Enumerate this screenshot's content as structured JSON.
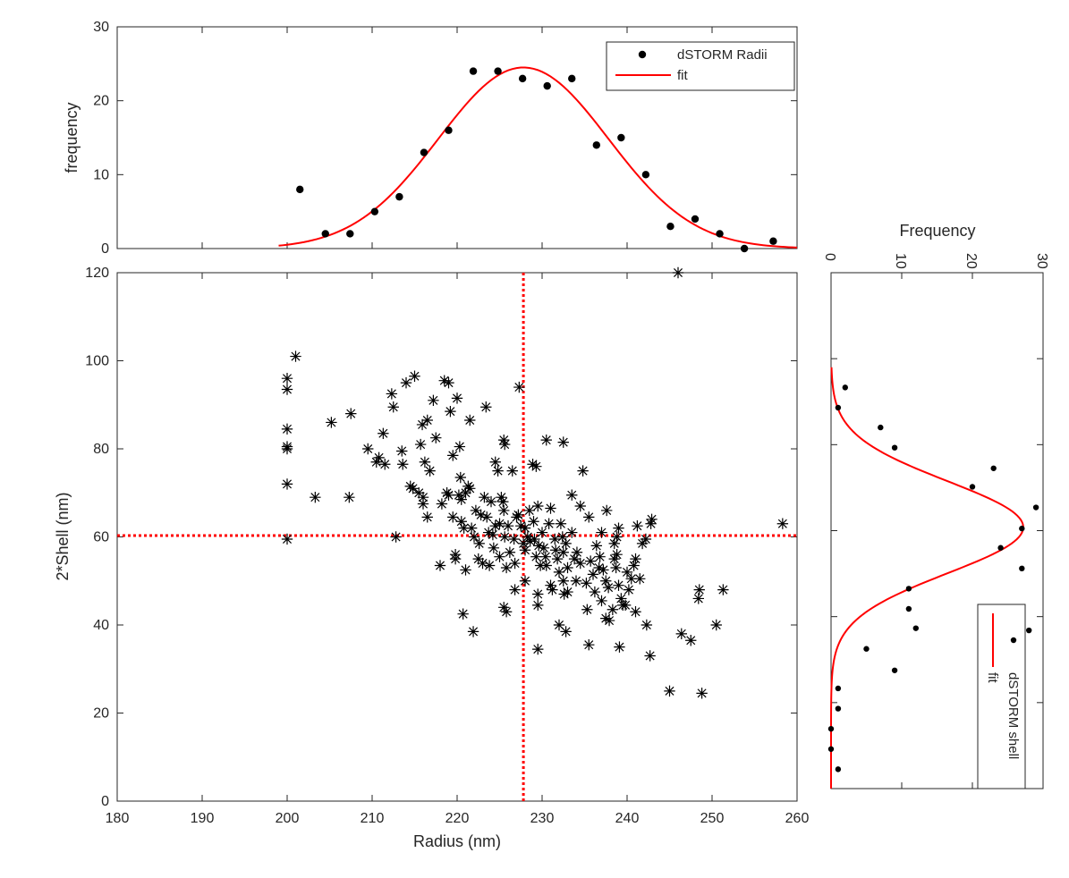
{
  "chart_data": [
    {
      "id": "top-histogram",
      "type": "scatter",
      "ylabel": "frequency",
      "xlim": [
        180,
        260
      ],
      "ylim": [
        0,
        30
      ],
      "xticks": [
        180,
        190,
        200,
        210,
        220,
        230,
        240,
        250,
        260
      ],
      "yticks": [
        0,
        10,
        20,
        30
      ],
      "legend_position": "top-right",
      "series": [
        {
          "name": "dSTORM Radii",
          "kind": "points",
          "color": "#000000",
          "x": [
            201.5,
            204.5,
            207.4,
            210.3,
            213.2,
            216.1,
            219.0,
            221.9,
            224.8,
            227.7,
            230.6,
            233.5,
            236.4,
            239.3,
            242.2,
            245.1,
            248.0,
            250.9,
            253.8,
            257.2
          ],
          "y": [
            8,
            2,
            2,
            5,
            7,
            13,
            16,
            24,
            24,
            23,
            22,
            23,
            14,
            15,
            10,
            3,
            4,
            2,
            0,
            1
          ]
        },
        {
          "name": "fit",
          "kind": "gaussian",
          "color": "#ff0000",
          "amplitude": 24.5,
          "mean": 227.8,
          "sigma": 10.0,
          "x_range": [
            199,
            260
          ]
        }
      ]
    },
    {
      "id": "main-scatter",
      "type": "scatter",
      "xlabel": "Radius (nm)",
      "ylabel": "2*Shell (nm)",
      "xlim": [
        180,
        260
      ],
      "ylim": [
        0,
        120
      ],
      "xticks": [
        180,
        190,
        200,
        210,
        220,
        230,
        240,
        250,
        260
      ],
      "yticks": [
        0,
        20,
        40,
        60,
        80,
        100,
        120
      ],
      "mean_lines": {
        "x": 227.8,
        "y": 60.3,
        "color": "#ff0000",
        "style": "dotted"
      },
      "point_color": "#000000",
      "points": [
        [
          200,
          96
        ],
        [
          200,
          93.5
        ],
        [
          200,
          84.5
        ],
        [
          200,
          80.5
        ],
        [
          200,
          80
        ],
        [
          200,
          72
        ],
        [
          200,
          59.5
        ],
        [
          201,
          101
        ],
        [
          203.3,
          69
        ],
        [
          205.2,
          86
        ],
        [
          207.3,
          69
        ],
        [
          207.5,
          88
        ],
        [
          209.5,
          80
        ],
        [
          210.5,
          77
        ],
        [
          210.8,
          78
        ],
        [
          211.3,
          83.5
        ],
        [
          211.5,
          76.5
        ],
        [
          212.3,
          92.5
        ],
        [
          212.5,
          89.5
        ],
        [
          212.8,
          60
        ],
        [
          213.5,
          79.5
        ],
        [
          213.6,
          76.5
        ],
        [
          214,
          95
        ],
        [
          214.5,
          71.5
        ],
        [
          214.8,
          71
        ],
        [
          215,
          96.5
        ],
        [
          215.5,
          70
        ],
        [
          215.7,
          81
        ],
        [
          215.9,
          85.5
        ],
        [
          216,
          69
        ],
        [
          216,
          67.5
        ],
        [
          216.2,
          77
        ],
        [
          216.5,
          86.5
        ],
        [
          216.5,
          64.5
        ],
        [
          216.8,
          75
        ],
        [
          217.2,
          91
        ],
        [
          217.5,
          82.5
        ],
        [
          218,
          53.5
        ],
        [
          218.2,
          67.5
        ],
        [
          218.5,
          95.5
        ],
        [
          218.8,
          70
        ],
        [
          219,
          69.5
        ],
        [
          219.2,
          88.5
        ],
        [
          219,
          95
        ],
        [
          219.5,
          78.5
        ],
        [
          219.5,
          64.5
        ],
        [
          219.8,
          56
        ],
        [
          219.8,
          55
        ],
        [
          220,
          91.5
        ],
        [
          220.2,
          69.5
        ],
        [
          220.3,
          80.5
        ],
        [
          220.4,
          73.5
        ],
        [
          220.5,
          68.5
        ],
        [
          220.5,
          63.5
        ],
        [
          220.7,
          42.5
        ],
        [
          220.8,
          62
        ],
        [
          221,
          52.5
        ],
        [
          221,
          70
        ],
        [
          221.3,
          71.5
        ],
        [
          221.5,
          86.5
        ],
        [
          221.5,
          71
        ],
        [
          221.7,
          62
        ],
        [
          221.9,
          38.5
        ],
        [
          222,
          60
        ],
        [
          222.2,
          66
        ],
        [
          222.5,
          55
        ],
        [
          222.6,
          58.5
        ],
        [
          222.8,
          65
        ],
        [
          223,
          54
        ],
        [
          223.2,
          69
        ],
        [
          223.4,
          89.5
        ],
        [
          223.5,
          64.5
        ],
        [
          223.7,
          61
        ],
        [
          223.8,
          53.5
        ],
        [
          224,
          68
        ],
        [
          224.2,
          60.5
        ],
        [
          224.3,
          57.5
        ],
        [
          224.5,
          77
        ],
        [
          224.5,
          62.5
        ],
        [
          224.8,
          75
        ],
        [
          225,
          63
        ],
        [
          225,
          55.5
        ],
        [
          225.2,
          69
        ],
        [
          225.4,
          68
        ],
        [
          225.5,
          82
        ],
        [
          225.6,
          81
        ],
        [
          225.5,
          66
        ],
        [
          225.6,
          60
        ],
        [
          225.8,
          53
        ],
        [
          225.5,
          44
        ],
        [
          225.8,
          43
        ],
        [
          226,
          62.5
        ],
        [
          226.2,
          56.5
        ],
        [
          226.5,
          75
        ],
        [
          226.7,
          59.5
        ],
        [
          226.8,
          54
        ],
        [
          226.8,
          48
        ],
        [
          227,
          64.5
        ],
        [
          227.2,
          65
        ],
        [
          227.3,
          94
        ],
        [
          227.5,
          62.5
        ],
        [
          227.8,
          58.5
        ],
        [
          228,
          62
        ],
        [
          228,
          57
        ],
        [
          228,
          50
        ],
        [
          228.3,
          60
        ],
        [
          228.5,
          66
        ],
        [
          228.6,
          59
        ],
        [
          228.9,
          76.5
        ],
        [
          229,
          63.5
        ],
        [
          229.1,
          59.5
        ],
        [
          229.3,
          76
        ],
        [
          229.3,
          55.5
        ],
        [
          229.5,
          67
        ],
        [
          229.6,
          58
        ],
        [
          229.8,
          53.5
        ],
        [
          229.5,
          44.5
        ],
        [
          229.5,
          34.5
        ],
        [
          229.5,
          47
        ],
        [
          230,
          61
        ],
        [
          230.2,
          57.5
        ],
        [
          230.4,
          55.5
        ],
        [
          230.5,
          82
        ],
        [
          230.5,
          53.5
        ],
        [
          230.8,
          63
        ],
        [
          231,
          66.5
        ],
        [
          231,
          49
        ],
        [
          231.2,
          48
        ],
        [
          231.5,
          59.5
        ],
        [
          231.6,
          57
        ],
        [
          231.8,
          55
        ],
        [
          232,
          52
        ],
        [
          232,
          40
        ],
        [
          232.2,
          63
        ],
        [
          232.4,
          60
        ],
        [
          232.5,
          81.5
        ],
        [
          232.5,
          56.5
        ],
        [
          232.5,
          50
        ],
        [
          232.6,
          47
        ],
        [
          232.8,
          58.5
        ],
        [
          232.8,
          38.5
        ],
        [
          233,
          53
        ],
        [
          233,
          47.5
        ],
        [
          233.5,
          69.5
        ],
        [
          233.5,
          61
        ],
        [
          233.8,
          55
        ],
        [
          234,
          50
        ],
        [
          234.1,
          56.5
        ],
        [
          234.5,
          67
        ],
        [
          234.5,
          54
        ],
        [
          234.8,
          75
        ],
        [
          235.2,
          49.5
        ],
        [
          235.3,
          43.5
        ],
        [
          235.5,
          35.5
        ],
        [
          235.5,
          64.5
        ],
        [
          235.7,
          54.5
        ],
        [
          236,
          51.5
        ],
        [
          236.2,
          47.5
        ],
        [
          236.4,
          58
        ],
        [
          236.7,
          53
        ],
        [
          236.8,
          55.5
        ],
        [
          237,
          61
        ],
        [
          237,
          45.5
        ],
        [
          237.2,
          52.5
        ],
        [
          237.5,
          50
        ],
        [
          237.5,
          41.5
        ],
        [
          237.6,
          66
        ],
        [
          237.8,
          48.5
        ],
        [
          237.9,
          41
        ],
        [
          238.3,
          43.5
        ],
        [
          238.5,
          58.5
        ],
        [
          238.5,
          55
        ],
        [
          238.7,
          53
        ],
        [
          238.8,
          60
        ],
        [
          238.8,
          56
        ],
        [
          239,
          62
        ],
        [
          239,
          49
        ],
        [
          239.1,
          35
        ],
        [
          239.3,
          46
        ],
        [
          239.5,
          44.5
        ],
        [
          239.8,
          44.5
        ],
        [
          240,
          52
        ],
        [
          240.2,
          48
        ],
        [
          240.5,
          50.5
        ],
        [
          240.8,
          53.5
        ],
        [
          241,
          55
        ],
        [
          241,
          43
        ],
        [
          241.2,
          62.5
        ],
        [
          241.5,
          50.5
        ],
        [
          241.8,
          58.5
        ],
        [
          242.2,
          59.5
        ],
        [
          242.3,
          40
        ],
        [
          242.7,
          33
        ],
        [
          242.8,
          63
        ],
        [
          242.9,
          64
        ],
        [
          245,
          25
        ],
        [
          246.4,
          38
        ],
        [
          247.5,
          36.5
        ],
        [
          248.4,
          46
        ],
        [
          248.5,
          48
        ],
        [
          248.8,
          24.5
        ],
        [
          250.5,
          40
        ],
        [
          251.3,
          48
        ],
        [
          258.3,
          63
        ],
        [
          246,
          120
        ]
      ]
    },
    {
      "id": "right-histogram",
      "type": "scatter",
      "xlabel": "Frequency",
      "xlim": [
        0,
        30
      ],
      "ylim": [
        0,
        120
      ],
      "xticks": [
        0,
        10,
        20,
        30
      ],
      "legend_position": "bottom-right",
      "series": [
        {
          "name": "dSTORM shell",
          "kind": "points",
          "color": "#000000",
          "freq": [
            1,
            0,
            0,
            1,
            1,
            9,
            5,
            28,
            12,
            11,
            11,
            27,
            24,
            27,
            29,
            23,
            20,
            9,
            7,
            1,
            2
          ],
          "shell": [
            4.5,
            9.2,
            13.9,
            18.6,
            23.3,
            27.5,
            32.5,
            36.8,
            37.3,
            41.8,
            46.5,
            51.2,
            56.0,
            60.5,
            65.4,
            74.5,
            70.2,
            79.3,
            84.0,
            88.6,
            93.3
          ]
        },
        {
          "name": "fit",
          "kind": "gaussian",
          "color": "#ff0000",
          "amplitude": 27.2,
          "mean": 60.8,
          "sigma": 10.7,
          "y_range": [
            0,
            98
          ]
        }
      ]
    }
  ]
}
